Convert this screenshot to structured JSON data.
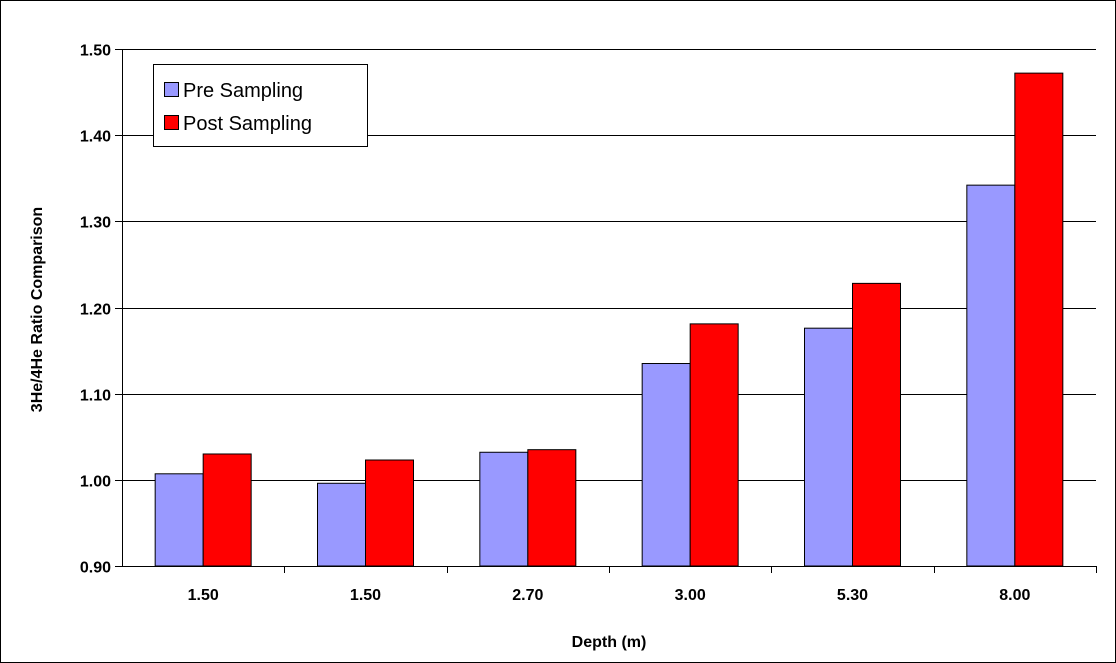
{
  "chart_data": {
    "type": "bar",
    "title": "",
    "xlabel": "Depth (m)",
    "ylabel": "3He/4He Ratio Comparison",
    "categories": [
      "1.50",
      "1.50",
      "2.70",
      "3.00",
      "5.30",
      "8.00"
    ],
    "series": [
      {
        "name": "Pre Sampling",
        "color": "#9999ff",
        "values": [
          1.007,
          0.996,
          1.032,
          1.135,
          1.176,
          1.342
        ]
      },
      {
        "name": "Post Sampling",
        "color": "#ff0000",
        "values": [
          1.03,
          1.023,
          1.035,
          1.181,
          1.228,
          1.472
        ]
      }
    ],
    "ylim": [
      0.9,
      1.5
    ],
    "yticks": [
      "0.90",
      "1.00",
      "1.10",
      "1.20",
      "1.30",
      "1.40",
      "1.50"
    ],
    "grid": true,
    "legend_position": "top-left"
  }
}
